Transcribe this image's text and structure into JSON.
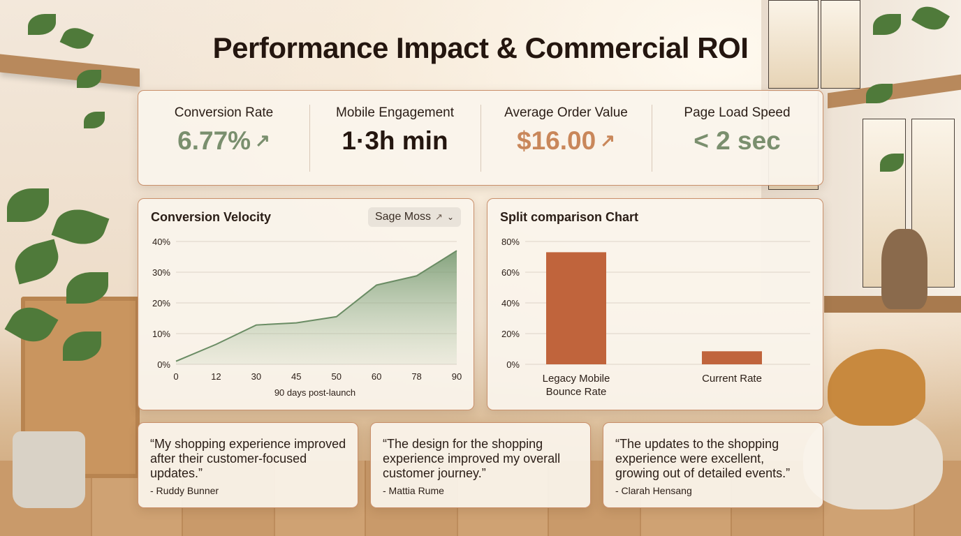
{
  "page_title": "Performance Impact & Commercial ROI",
  "colors": {
    "sage": "#7a8f6e",
    "copper": "#c57a4d",
    "bar": "#c0643c",
    "dark": "#24160f",
    "card_border": "#c98f6a"
  },
  "metrics": [
    {
      "label": "Conversion Rate",
      "value": "6.77%",
      "arrow": "↗",
      "color": "#7a8f6e"
    },
    {
      "label": "Mobile Engagement",
      "value": "1·3h min",
      "arrow": "",
      "color": "#24160f"
    },
    {
      "label": "Average Order Value",
      "value": "$16.00",
      "arrow": "↗",
      "color": "#c9875a"
    },
    {
      "label": "Page Load Speed",
      "value": "< 2 sec",
      "arrow": "",
      "color": "#7a8f6e"
    }
  ],
  "conversion_chart": {
    "title": "Conversion Velocity",
    "dropdown": {
      "label": "Sage Moss",
      "icon": "arrow-up-right-icon",
      "chevron": "chevron-down-icon"
    }
  },
  "split_chart": {
    "title": "Split comparison Chart"
  },
  "chart_data": [
    {
      "type": "area",
      "title": "Conversion Velocity",
      "x": [
        0,
        12,
        30,
        45,
        50,
        60,
        78,
        90
      ],
      "x_ticks": [
        "0",
        "12",
        "30",
        "45",
        "50",
        "60",
        "78",
        "90"
      ],
      "values": [
        1,
        6.5,
        12.8,
        13.5,
        15.5,
        25.8,
        28.8,
        37
      ],
      "xlabel": "90 days post-launch",
      "ylabel": "",
      "y_ticks": [
        "0%",
        "10%",
        "20%",
        "30%",
        "40%"
      ],
      "ylim": [
        0,
        40
      ],
      "grid": true,
      "color": "#7fa07a"
    },
    {
      "type": "bar",
      "title": "Split comparison Chart",
      "categories": [
        "Legacy Mobile\nBounce Rate",
        "Current Rate"
      ],
      "values": [
        73,
        8.5
      ],
      "y_ticks": [
        "0%",
        "20%",
        "40%",
        "60%",
        "80%"
      ],
      "ylim": [
        0,
        80
      ],
      "grid": true,
      "color": "#c0643c"
    }
  ],
  "testimonials": [
    {
      "quote": "“My shopping experience improved after their customer-focused updates.”",
      "author": "- Ruddy Bunner"
    },
    {
      "quote": "“The design for the shopping experience improved my overall customer journey.”",
      "author": "- Mattia Rume"
    },
    {
      "quote": "“The updates to the shopping experience were excellent, growing out of detailed events.”",
      "author": "- Clarah Hensang"
    }
  ]
}
